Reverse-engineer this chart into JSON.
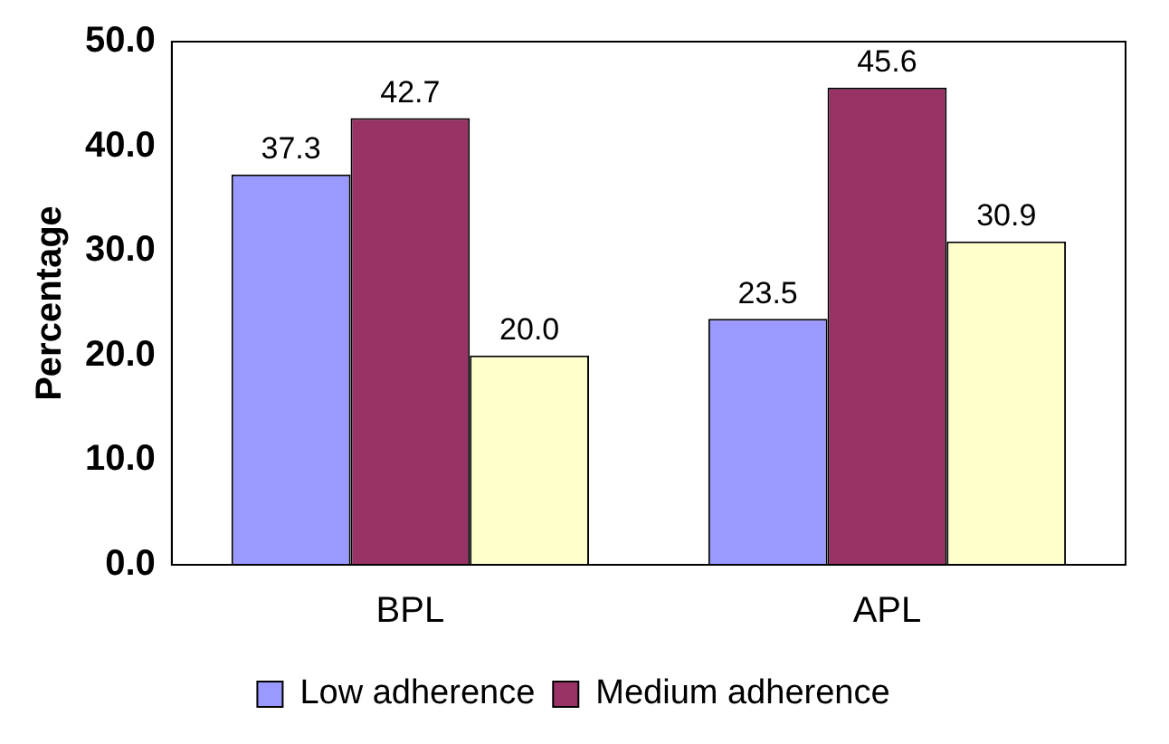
{
  "chart_data": {
    "type": "bar",
    "ylabel": "Percentage",
    "categories": [
      "BPL",
      "APL"
    ],
    "series": [
      {
        "name": "Low adherence",
        "color": "#9999ff",
        "values": [
          37.3,
          23.5
        ],
        "value_labels": [
          "37.3",
          "23.5"
        ]
      },
      {
        "name": "Medium adherence",
        "color": "#993366",
        "values": [
          42.7,
          45.6
        ],
        "value_labels": [
          "42.7",
          "45.6"
        ]
      },
      {
        "color": "#ffffcc",
        "values": [
          20.0,
          30.9
        ],
        "value_labels": [
          "20.0",
          "30.9"
        ]
      }
    ],
    "ylim": [
      0,
      50
    ],
    "yticks": [
      {
        "value": 0,
        "label": "0.0"
      },
      {
        "value": 10,
        "label": "10.0"
      },
      {
        "value": 20,
        "label": "20.0"
      },
      {
        "value": 30,
        "label": "30.0"
      },
      {
        "value": 40,
        "label": "40.0"
      },
      {
        "value": 50,
        "label": "50.0"
      }
    ],
    "grid": false,
    "legend": "bottom"
  }
}
